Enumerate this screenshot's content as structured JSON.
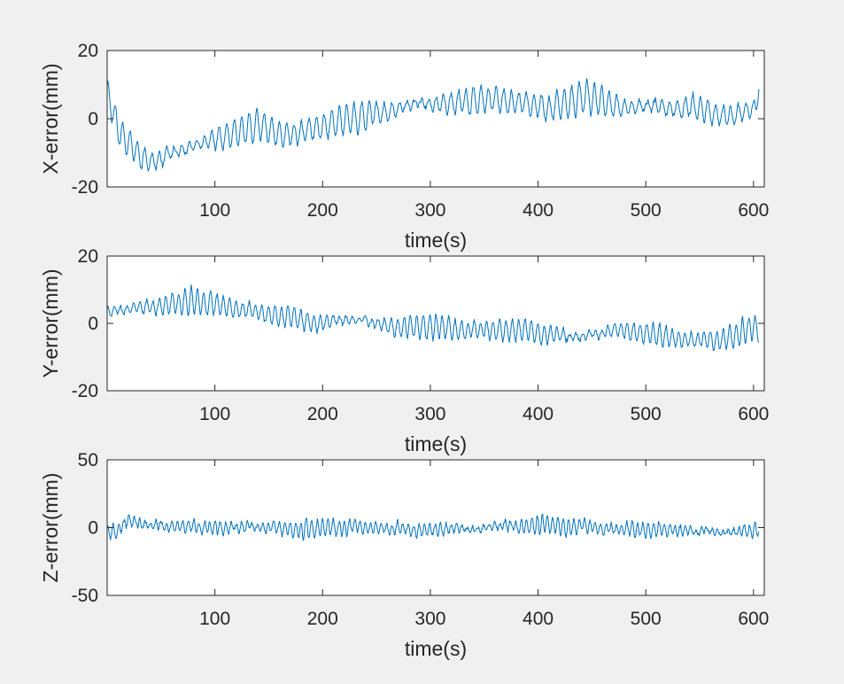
{
  "window": {
    "background": "#f0f0f0"
  },
  "chart_data": [
    {
      "type": "line",
      "title": "",
      "xlabel": "time(s)",
      "ylabel": "X-error(mm)",
      "xlim": [
        0,
        610
      ],
      "ylim": [
        -20,
        20
      ],
      "xticks": [
        100,
        200,
        300,
        400,
        500,
        600
      ],
      "yticks": [
        -20,
        0,
        20
      ],
      "grid": false,
      "color": "#0072bd",
      "series": [
        {
          "x": [
            0,
            10,
            20,
            30,
            40,
            50,
            60,
            70,
            80,
            90,
            100,
            110,
            120,
            130,
            140,
            150,
            160,
            170,
            180,
            190,
            200,
            210,
            220,
            230,
            240,
            250,
            260,
            270,
            280,
            290,
            300,
            310,
            320,
            330,
            340,
            350,
            360,
            370,
            380,
            390,
            400,
            410,
            420,
            430,
            440,
            450,
            460,
            470,
            480,
            490,
            500,
            510,
            520,
            530,
            540,
            550,
            560,
            570,
            580,
            590,
            600,
            605
          ],
          "trend": [
            8,
            -3,
            -7,
            -11,
            -13,
            -12,
            -10,
            -9,
            -8,
            -7,
            -6,
            -5,
            -4,
            -3,
            -2,
            -3,
            -5,
            -5,
            -4,
            -3,
            -2,
            -1,
            0,
            0,
            1,
            2,
            2,
            3,
            4,
            5,
            4,
            4,
            5,
            5,
            5,
            6,
            6,
            5,
            5,
            4,
            4,
            3,
            4,
            5,
            6,
            6,
            5,
            4,
            3,
            3,
            4,
            4,
            3,
            3,
            4,
            3,
            2,
            1,
            1,
            2,
            2,
            8
          ],
          "amplitude": 4.5,
          "noise": 1.2,
          "period": 7,
          "samples": 1000,
          "seed": 11
        }
      ]
    },
    {
      "type": "line",
      "title": "",
      "xlabel": "time(s)",
      "ylabel": "Y-error(mm)",
      "xlim": [
        0,
        610
      ],
      "ylim": [
        -20,
        20
      ],
      "xticks": [
        100,
        200,
        300,
        400,
        500,
        600
      ],
      "yticks": [
        -20,
        0,
        20
      ],
      "grid": false,
      "color": "#0072bd",
      "series": [
        {
          "x": [
            0,
            10,
            20,
            30,
            40,
            50,
            60,
            70,
            80,
            90,
            100,
            110,
            120,
            130,
            140,
            150,
            160,
            170,
            180,
            190,
            200,
            210,
            220,
            230,
            240,
            250,
            260,
            270,
            280,
            290,
            300,
            310,
            320,
            330,
            340,
            350,
            360,
            370,
            380,
            390,
            400,
            410,
            420,
            430,
            440,
            450,
            460,
            470,
            480,
            490,
            500,
            510,
            520,
            530,
            540,
            550,
            560,
            570,
            580,
            590,
            600,
            605
          ],
          "trend": [
            3,
            4,
            4,
            5,
            5,
            5,
            6,
            6,
            7,
            6,
            6,
            5,
            4,
            4,
            3,
            3,
            2,
            2,
            1,
            0,
            0,
            1,
            1,
            1,
            1,
            0,
            -1,
            -1,
            -1,
            -1,
            -1,
            -1,
            -2,
            -2,
            -2,
            -2,
            -2,
            -2,
            -2,
            -2,
            -3,
            -3,
            -3,
            -4,
            -4,
            -3,
            -3,
            -2,
            -2,
            -3,
            -3,
            -3,
            -4,
            -5,
            -5,
            -5,
            -5,
            -5,
            -4,
            -2,
            -1,
            -2
          ],
          "amplitude": 3.5,
          "noise": 1.0,
          "period": 6,
          "samples": 1000,
          "seed": 23
        }
      ]
    },
    {
      "type": "line",
      "title": "",
      "xlabel": "time(s)",
      "ylabel": "Z-error(mm)",
      "xlim": [
        0,
        610
      ],
      "ylim": [
        -50,
        50
      ],
      "xticks": [
        100,
        200,
        300,
        400,
        500,
        600
      ],
      "yticks": [
        -50,
        0,
        50
      ],
      "grid": false,
      "color": "#0072bd",
      "series": [
        {
          "x": [
            0,
            10,
            20,
            30,
            40,
            50,
            60,
            70,
            80,
            90,
            100,
            110,
            120,
            130,
            140,
            150,
            160,
            170,
            180,
            190,
            200,
            210,
            220,
            230,
            240,
            250,
            260,
            270,
            280,
            290,
            300,
            310,
            320,
            330,
            340,
            350,
            360,
            370,
            380,
            390,
            400,
            410,
            420,
            430,
            440,
            450,
            460,
            470,
            480,
            490,
            500,
            510,
            520,
            530,
            540,
            550,
            560,
            570,
            580,
            590,
            600,
            605
          ],
          "trend": [
            -3,
            -2,
            6,
            3,
            1,
            2,
            0,
            1,
            2,
            0,
            0,
            -1,
            0,
            1,
            -1,
            0,
            -1,
            0,
            -2,
            -1,
            0,
            1,
            0,
            2,
            1,
            1,
            -1,
            0,
            -1,
            -2,
            -2,
            -1,
            0,
            0,
            -1,
            0,
            1,
            2,
            1,
            1,
            2,
            3,
            1,
            0,
            1,
            0,
            -1,
            -1,
            -1,
            -2,
            -1,
            -1,
            -2,
            -2,
            -3,
            -3,
            -2,
            -4,
            -3,
            -3,
            -2,
            -2
          ],
          "amplitude": 6.0,
          "noise": 3.5,
          "period": 5,
          "samples": 1200,
          "seed": 37
        }
      ]
    }
  ]
}
